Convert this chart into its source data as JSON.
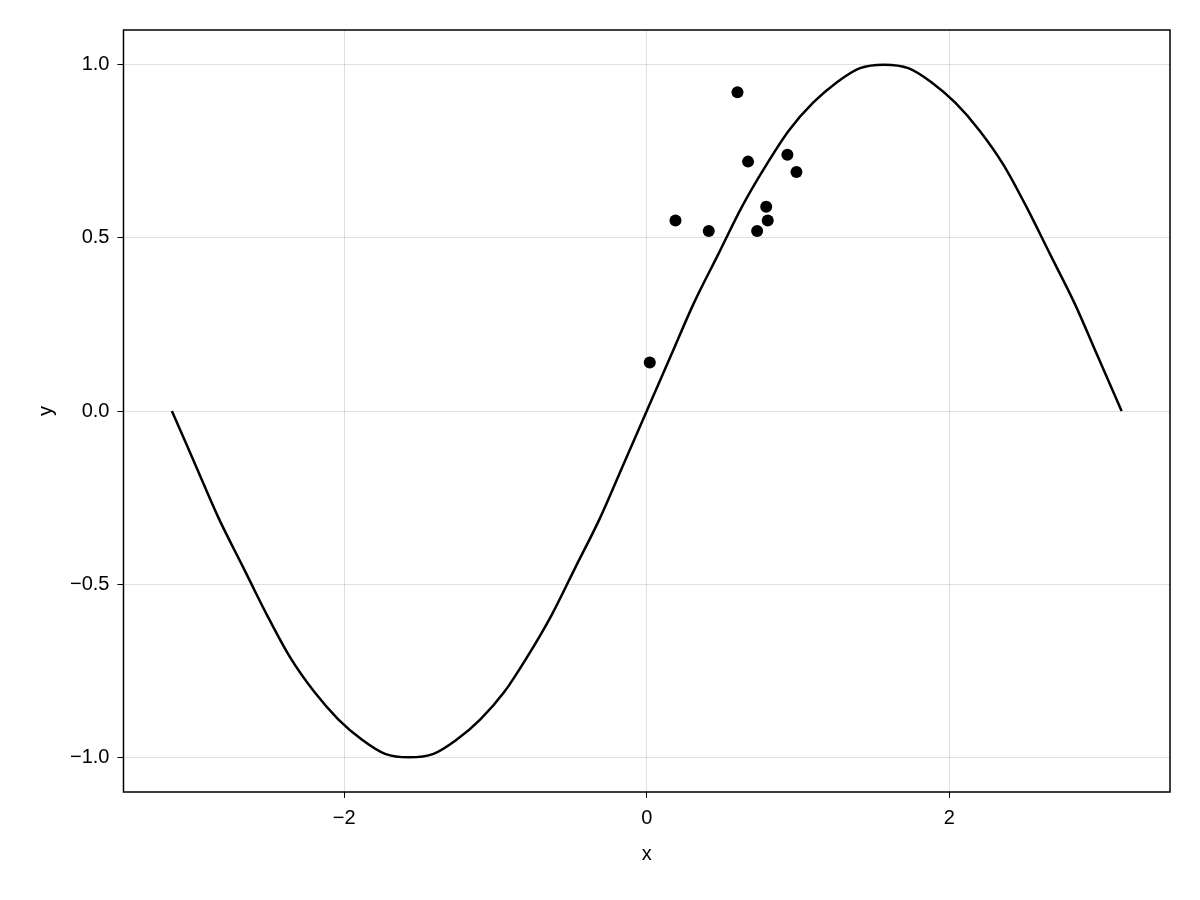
{
  "chart_data": {
    "type": "scatter",
    "xlabel": "x",
    "ylabel": "y",
    "xlim": [
      -3.46,
      3.46
    ],
    "ylim": [
      -1.1,
      1.1
    ],
    "xticks": [
      -2,
      0,
      2
    ],
    "yticks": [
      {
        "value": -1,
        "label": "−1.0"
      },
      -0.5,
      {
        "value": 0,
        "label": "0.0"
      },
      0.5,
      {
        "value": 1,
        "label": "1.0"
      }
    ],
    "grid": true,
    "legend": false,
    "marker": "circle",
    "series": [
      {
        "type": "line",
        "color": "#000000",
        "marker": "none",
        "line_style": "solid",
        "x": [
          -3.14,
          -2.98,
          -2.83,
          -2.67,
          -2.51,
          -2.36,
          -2.2,
          -2.04,
          -1.88,
          -1.73,
          -1.57,
          -1.41,
          -1.26,
          -1.1,
          -0.94,
          -0.79,
          -0.63,
          -0.47,
          -0.31,
          -0.16,
          0,
          0.16,
          0.31,
          0.47,
          0.63,
          0.79,
          0.94,
          1.1,
          1.26,
          1.41,
          1.57,
          1.73,
          1.88,
          2.04,
          2.2,
          2.36,
          2.51,
          2.67,
          2.83,
          2.98,
          3.14
        ],
        "values": [
          0,
          -0.16,
          -0.31,
          -0.45,
          -0.59,
          -0.71,
          -0.81,
          -0.89,
          -0.95,
          -0.99,
          -1,
          -0.99,
          -0.95,
          -0.89,
          -0.81,
          -0.71,
          -0.59,
          -0.45,
          -0.31,
          -0.16,
          0,
          0.16,
          0.31,
          0.45,
          0.59,
          0.71,
          0.81,
          0.89,
          0.95,
          0.99,
          1,
          0.99,
          0.95,
          0.89,
          0.81,
          0.71,
          0.59,
          0.45,
          0.31,
          0.16,
          0
        ]
      },
      {
        "type": "scatter",
        "color": "#000000",
        "x": [
          0.02,
          0.19,
          0.41,
          0.6,
          0.67,
          0.73,
          0.79,
          0.8,
          0.93,
          0.99
        ],
        "values": [
          0.14,
          0.55,
          0.52,
          0.92,
          0.72,
          0.52,
          0.59,
          0.55,
          0.74,
          0.69
        ]
      }
    ]
  }
}
